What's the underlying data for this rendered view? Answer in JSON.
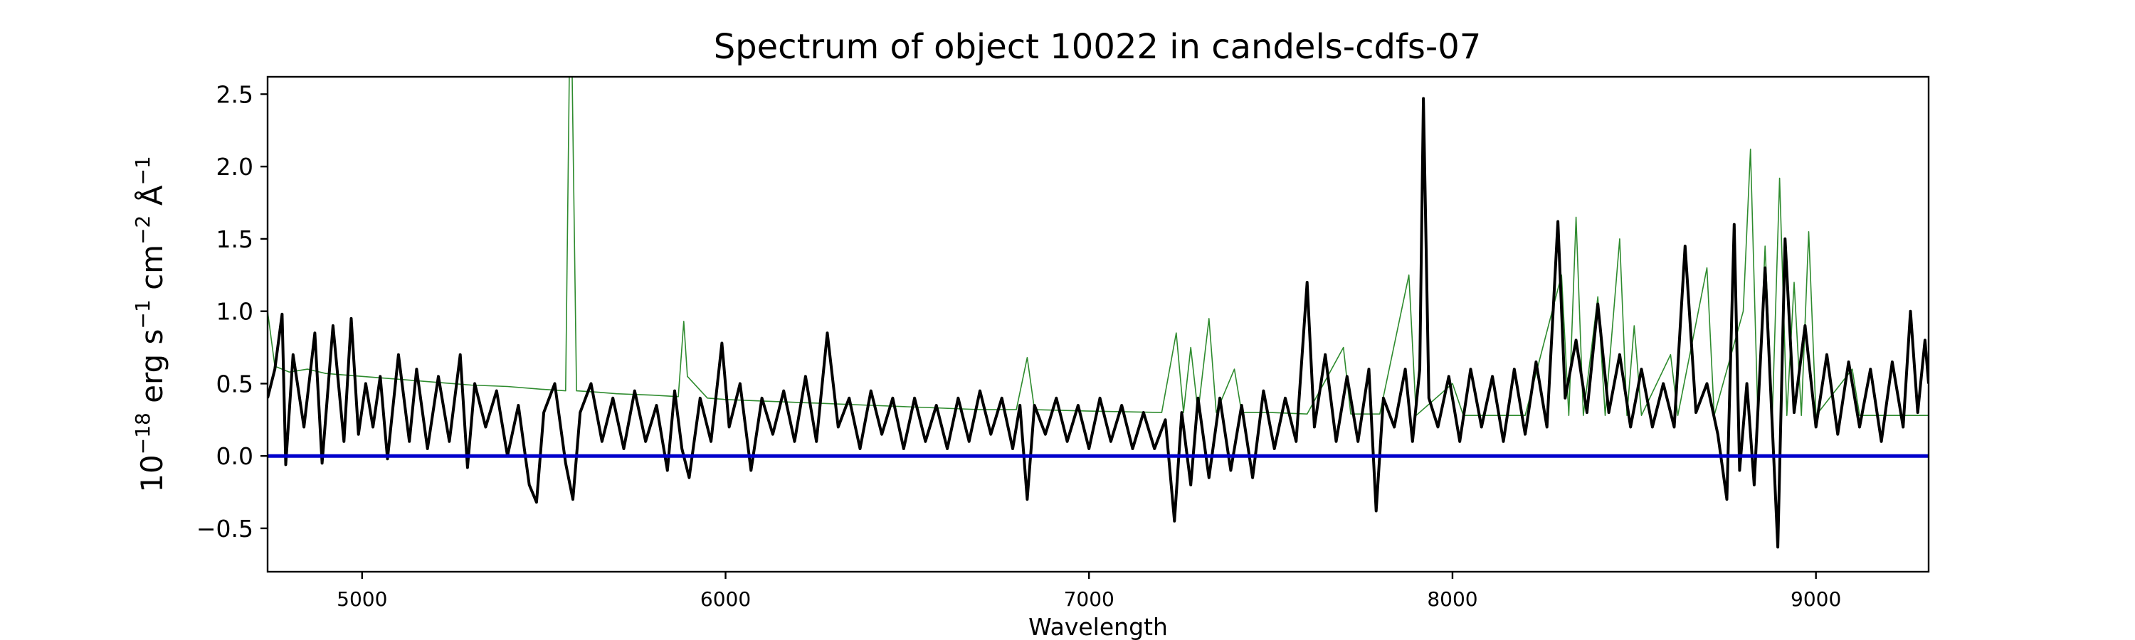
{
  "chart_data": {
    "type": "line",
    "title": "Spectrum of object 10022 in candels-cdfs-07",
    "xlabel": "Wavelength",
    "ylabel": {
      "base": "10",
      "exp_power": "−18",
      "erg": " erg s",
      "exp_s": "−1",
      "cm": " cm",
      "exp_cm": "−2",
      "ang": " Å",
      "exp_ang": "−1"
    },
    "xlim": [
      4740,
      9310
    ],
    "ylim": [
      -0.8,
      2.62
    ],
    "xticks": [
      5000,
      6000,
      7000,
      8000,
      9000
    ],
    "xtick_labels": [
      "5000",
      "6000",
      "7000",
      "8000",
      "9000"
    ],
    "yticks": [
      -0.5,
      0.0,
      0.5,
      1.0,
      1.5,
      2.0,
      2.5
    ],
    "ytick_labels": [
      "−0.5",
      "0.0",
      "0.5",
      "1.0",
      "1.5",
      "2.0",
      "2.5"
    ],
    "grid": false,
    "series": [
      {
        "role": "model",
        "color": "#2e8b2e",
        "points": [
          [
            4740,
            1.0
          ],
          [
            4760,
            0.62
          ],
          [
            4800,
            0.58
          ],
          [
            4850,
            0.6
          ],
          [
            4900,
            0.57
          ],
          [
            5000,
            0.55
          ],
          [
            5100,
            0.53
          ],
          [
            5200,
            0.51
          ],
          [
            5300,
            0.49
          ],
          [
            5400,
            0.48
          ],
          [
            5500,
            0.46
          ],
          [
            5560,
            0.45
          ],
          [
            5570,
            2.62
          ],
          [
            5578,
            2.62
          ],
          [
            5590,
            0.45
          ],
          [
            5650,
            0.44
          ],
          [
            5700,
            0.43
          ],
          [
            5800,
            0.42
          ],
          [
            5870,
            0.41
          ],
          [
            5885,
            0.93
          ],
          [
            5895,
            0.55
          ],
          [
            5950,
            0.4
          ],
          [
            6000,
            0.39
          ],
          [
            6100,
            0.38
          ],
          [
            6200,
            0.37
          ],
          [
            6300,
            0.36
          ],
          [
            6400,
            0.35
          ],
          [
            6500,
            0.34
          ],
          [
            6600,
            0.33
          ],
          [
            6700,
            0.32
          ],
          [
            6800,
            0.32
          ],
          [
            6830,
            0.68
          ],
          [
            6850,
            0.32
          ],
          [
            7000,
            0.31
          ],
          [
            7200,
            0.3
          ],
          [
            7240,
            0.85
          ],
          [
            7260,
            0.3
          ],
          [
            7280,
            0.75
          ],
          [
            7300,
            0.3
          ],
          [
            7330,
            0.95
          ],
          [
            7350,
            0.3
          ],
          [
            7400,
            0.6
          ],
          [
            7420,
            0.3
          ],
          [
            7500,
            0.3
          ],
          [
            7600,
            0.29
          ],
          [
            7700,
            0.75
          ],
          [
            7720,
            0.29
          ],
          [
            7800,
            0.29
          ],
          [
            7880,
            1.25
          ],
          [
            7900,
            0.28
          ],
          [
            8000,
            0.5
          ],
          [
            8030,
            0.28
          ],
          [
            8200,
            0.28
          ],
          [
            8300,
            1.25
          ],
          [
            8320,
            0.28
          ],
          [
            8340,
            1.65
          ],
          [
            8360,
            0.28
          ],
          [
            8400,
            1.1
          ],
          [
            8420,
            0.28
          ],
          [
            8460,
            1.5
          ],
          [
            8480,
            0.28
          ],
          [
            8500,
            0.9
          ],
          [
            8520,
            0.28
          ],
          [
            8600,
            0.7
          ],
          [
            8620,
            0.28
          ],
          [
            8700,
            1.3
          ],
          [
            8720,
            0.28
          ],
          [
            8800,
            1.0
          ],
          [
            8820,
            2.12
          ],
          [
            8840,
            0.28
          ],
          [
            8860,
            1.45
          ],
          [
            8880,
            0.28
          ],
          [
            8900,
            1.92
          ],
          [
            8920,
            0.28
          ],
          [
            8940,
            1.2
          ],
          [
            8960,
            0.28
          ],
          [
            8980,
            1.55
          ],
          [
            9000,
            0.28
          ],
          [
            9100,
            0.6
          ],
          [
            9120,
            0.28
          ],
          [
            9200,
            0.28
          ],
          [
            9310,
            0.28
          ]
        ]
      },
      {
        "role": "observed",
        "color": "#000000",
        "points": [
          [
            4740,
            0.4
          ],
          [
            4760,
            0.6
          ],
          [
            4780,
            0.98
          ],
          [
            4790,
            -0.06
          ],
          [
            4810,
            0.7
          ],
          [
            4840,
            0.2
          ],
          [
            4870,
            0.85
          ],
          [
            4890,
            -0.05
          ],
          [
            4920,
            0.9
          ],
          [
            4950,
            0.1
          ],
          [
            4970,
            0.95
          ],
          [
            4990,
            0.15
          ],
          [
            5010,
            0.5
          ],
          [
            5030,
            0.2
          ],
          [
            5050,
            0.55
          ],
          [
            5070,
            -0.02
          ],
          [
            5100,
            0.7
          ],
          [
            5130,
            0.1
          ],
          [
            5150,
            0.6
          ],
          [
            5180,
            0.05
          ],
          [
            5210,
            0.55
          ],
          [
            5240,
            0.1
          ],
          [
            5270,
            0.7
          ],
          [
            5290,
            -0.08
          ],
          [
            5310,
            0.5
          ],
          [
            5340,
            0.2
          ],
          [
            5370,
            0.45
          ],
          [
            5400,
            0.0
          ],
          [
            5430,
            0.35
          ],
          [
            5460,
            -0.2
          ],
          [
            5480,
            -0.32
          ],
          [
            5500,
            0.3
          ],
          [
            5530,
            0.5
          ],
          [
            5560,
            -0.05
          ],
          [
            5580,
            -0.3
          ],
          [
            5600,
            0.3
          ],
          [
            5630,
            0.5
          ],
          [
            5660,
            0.1
          ],
          [
            5690,
            0.4
          ],
          [
            5720,
            0.05
          ],
          [
            5750,
            0.45
          ],
          [
            5780,
            0.1
          ],
          [
            5810,
            0.35
          ],
          [
            5840,
            -0.1
          ],
          [
            5860,
            0.45
          ],
          [
            5880,
            0.05
          ],
          [
            5900,
            -0.15
          ],
          [
            5930,
            0.4
          ],
          [
            5960,
            0.1
          ],
          [
            5990,
            0.78
          ],
          [
            6010,
            0.2
          ],
          [
            6040,
            0.5
          ],
          [
            6070,
            -0.1
          ],
          [
            6100,
            0.4
          ],
          [
            6130,
            0.15
          ],
          [
            6160,
            0.45
          ],
          [
            6190,
            0.1
          ],
          [
            6220,
            0.55
          ],
          [
            6250,
            0.1
          ],
          [
            6280,
            0.85
          ],
          [
            6310,
            0.2
          ],
          [
            6340,
            0.4
          ],
          [
            6370,
            0.05
          ],
          [
            6400,
            0.45
          ],
          [
            6430,
            0.15
          ],
          [
            6460,
            0.4
          ],
          [
            6490,
            0.05
          ],
          [
            6520,
            0.4
          ],
          [
            6550,
            0.1
          ],
          [
            6580,
            0.35
          ],
          [
            6610,
            0.05
          ],
          [
            6640,
            0.4
          ],
          [
            6670,
            0.1
          ],
          [
            6700,
            0.45
          ],
          [
            6730,
            0.15
          ],
          [
            6760,
            0.4
          ],
          [
            6790,
            0.05
          ],
          [
            6810,
            0.35
          ],
          [
            6830,
            -0.3
          ],
          [
            6850,
            0.35
          ],
          [
            6880,
            0.15
          ],
          [
            6910,
            0.4
          ],
          [
            6940,
            0.1
          ],
          [
            6970,
            0.35
          ],
          [
            7000,
            0.05
          ],
          [
            7030,
            0.4
          ],
          [
            7060,
            0.1
          ],
          [
            7090,
            0.35
          ],
          [
            7120,
            0.05
          ],
          [
            7150,
            0.3
          ],
          [
            7180,
            0.05
          ],
          [
            7210,
            0.25
          ],
          [
            7235,
            -0.45
          ],
          [
            7255,
            0.3
          ],
          [
            7280,
            -0.2
          ],
          [
            7300,
            0.4
          ],
          [
            7330,
            -0.15
          ],
          [
            7360,
            0.4
          ],
          [
            7390,
            -0.1
          ],
          [
            7420,
            0.35
          ],
          [
            7450,
            -0.15
          ],
          [
            7480,
            0.45
          ],
          [
            7510,
            0.05
          ],
          [
            7540,
            0.4
          ],
          [
            7570,
            0.1
          ],
          [
            7600,
            1.2
          ],
          [
            7620,
            0.2
          ],
          [
            7650,
            0.7
          ],
          [
            7680,
            0.1
          ],
          [
            7710,
            0.55
          ],
          [
            7740,
            0.1
          ],
          [
            7770,
            0.6
          ],
          [
            7790,
            -0.38
          ],
          [
            7810,
            0.4
          ],
          [
            7840,
            0.2
          ],
          [
            7870,
            0.6
          ],
          [
            7890,
            0.1
          ],
          [
            7910,
            0.6
          ],
          [
            7920,
            2.47
          ],
          [
            7935,
            0.4
          ],
          [
            7960,
            0.2
          ],
          [
            7990,
            0.55
          ],
          [
            8020,
            0.1
          ],
          [
            8050,
            0.6
          ],
          [
            8080,
            0.2
          ],
          [
            8110,
            0.55
          ],
          [
            8140,
            0.1
          ],
          [
            8170,
            0.6
          ],
          [
            8200,
            0.15
          ],
          [
            8230,
            0.65
          ],
          [
            8260,
            0.2
          ],
          [
            8290,
            1.62
          ],
          [
            8310,
            0.4
          ],
          [
            8340,
            0.8
          ],
          [
            8370,
            0.3
          ],
          [
            8400,
            1.05
          ],
          [
            8430,
            0.3
          ],
          [
            8460,
            0.7
          ],
          [
            8490,
            0.2
          ],
          [
            8520,
            0.6
          ],
          [
            8550,
            0.2
          ],
          [
            8580,
            0.5
          ],
          [
            8610,
            0.2
          ],
          [
            8640,
            1.45
          ],
          [
            8670,
            0.3
          ],
          [
            8700,
            0.5
          ],
          [
            8730,
            0.15
          ],
          [
            8755,
            -0.3
          ],
          [
            8775,
            1.6
          ],
          [
            8790,
            -0.1
          ],
          [
            8810,
            0.5
          ],
          [
            8830,
            -0.2
          ],
          [
            8860,
            1.3
          ],
          [
            8880,
            0.2
          ],
          [
            8895,
            -0.63
          ],
          [
            8915,
            1.5
          ],
          [
            8940,
            0.3
          ],
          [
            8970,
            0.9
          ],
          [
            9000,
            0.2
          ],
          [
            9030,
            0.7
          ],
          [
            9060,
            0.15
          ],
          [
            9090,
            0.65
          ],
          [
            9120,
            0.2
          ],
          [
            9150,
            0.6
          ],
          [
            9180,
            0.1
          ],
          [
            9210,
            0.65
          ],
          [
            9240,
            0.2
          ],
          [
            9260,
            1.0
          ],
          [
            9280,
            0.3
          ],
          [
            9300,
            0.8
          ],
          [
            9310,
            0.5
          ]
        ]
      },
      {
        "role": "zero",
        "color": "#0000cc",
        "points": [
          [
            4740,
            0.0
          ],
          [
            9310,
            0.0
          ]
        ]
      }
    ]
  }
}
